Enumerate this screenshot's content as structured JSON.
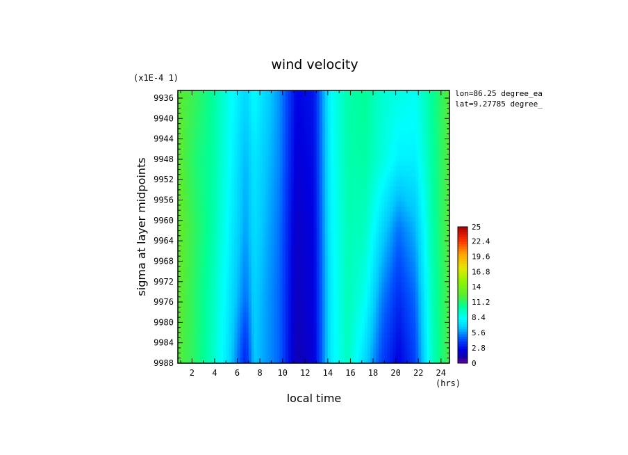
{
  "chart_data": {
    "type": "heatmap",
    "title": "wind velocity",
    "xlabel": "local time",
    "x_unit": "(hrs)",
    "ylabel": "sigma at layer midpoints",
    "y_scale_label": "(x1E-4 1)",
    "annotations": [
      "lon=86.25 degree_ea",
      "lat=9.27785 degree_"
    ],
    "xlim": [
      0.75,
      24.75
    ],
    "ylim": [
      9934.5,
      9988
    ],
    "y_inverted": true,
    "x_ticks": [
      2,
      4,
      6,
      8,
      10,
      12,
      14,
      16,
      18,
      20,
      22,
      24
    ],
    "y_ticks": [
      9936,
      9940,
      9944,
      9948,
      9952,
      9956,
      9960,
      9964,
      9968,
      9972,
      9976,
      9980,
      9984,
      9988
    ],
    "colorbar": {
      "min": 0,
      "max": 25,
      "tick_labels": [
        "25",
        "22.4",
        "19.6",
        "16.8",
        "14",
        "11.2",
        "8.4",
        "5.6",
        "2.8",
        "0"
      ],
      "tick_values": [
        25,
        22.4,
        19.6,
        16.8,
        14,
        11.2,
        8.4,
        5.6,
        2.8,
        0
      ]
    },
    "x": [
      0.75,
      2.25,
      3.75,
      5.25,
      6.75,
      7.5,
      9.75,
      11.25,
      12.75,
      14.25,
      15.75,
      17.25,
      18.75,
      20.25,
      21.75,
      23.25,
      24.75
    ],
    "y": [
      9934.5,
      9948,
      9962,
      9975,
      9988
    ],
    "z": [
      [
        12.6,
        11.8,
        10.5,
        8.6,
        7.0,
        8.2,
        5.6,
        2.6,
        3.0,
        8.2,
        10.0,
        10.5,
        9.3,
        8.8,
        8.5,
        10.5,
        12.5
      ],
      [
        12.8,
        11.2,
        10.4,
        8.4,
        6.2,
        7.5,
        5.4,
        2.2,
        2.8,
        8.0,
        10.0,
        10.2,
        9.0,
        7.8,
        7.8,
        10.3,
        12.5
      ],
      [
        13.0,
        11.6,
        10.2,
        8.0,
        5.8,
        7.2,
        5.0,
        1.8,
        2.5,
        7.8,
        9.8,
        9.6,
        7.0,
        5.0,
        6.2,
        10.1,
        12.6
      ],
      [
        12.8,
        11.4,
        9.8,
        7.6,
        5.0,
        6.8,
        4.8,
        1.6,
        2.4,
        7.6,
        9.8,
        8.6,
        5.4,
        3.6,
        5.0,
        9.8,
        12.4
      ],
      [
        12.4,
        11.4,
        9.6,
        7.2,
        3.2,
        6.6,
        4.8,
        1.4,
        2.2,
        7.6,
        9.6,
        7.0,
        4.2,
        2.4,
        4.2,
        9.6,
        12.2
      ]
    ]
  }
}
